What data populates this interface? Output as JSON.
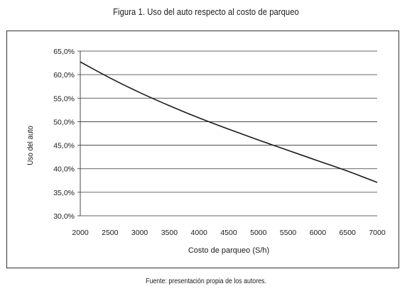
{
  "figure": {
    "title": "Figura 1. Uso del auto respecto al costo de parqueo",
    "source": "Fuente: presentación propia de los autores."
  },
  "chart_data": {
    "type": "line",
    "xlabel": "Costo de parqueo (S/h)",
    "ylabel": "Uso del auto",
    "xlim": [
      2000,
      7000
    ],
    "ylim": [
      30,
      65
    ],
    "x_ticks": [
      "2000",
      "2500",
      "3000",
      "3500",
      "4000",
      "4500",
      "5000",
      "5500",
      "6000",
      "6500",
      "7000"
    ],
    "y_ticks": [
      "30,0%",
      "35,0%",
      "40,0%",
      "45,0%",
      "50,0%",
      "55,0%",
      "60,0%",
      "65,0%"
    ],
    "grid": "horizontal",
    "line_color": "#1a1a1a",
    "series": [
      {
        "x": [
          2000,
          2500,
          3000,
          3500,
          4000,
          4500,
          5000,
          5500,
          6000,
          6500,
          7000
        ],
        "values": [
          62.7,
          59.3,
          56.2,
          53.4,
          50.8,
          48.4,
          46.1,
          43.9,
          41.7,
          39.5,
          37.1
        ]
      }
    ]
  }
}
